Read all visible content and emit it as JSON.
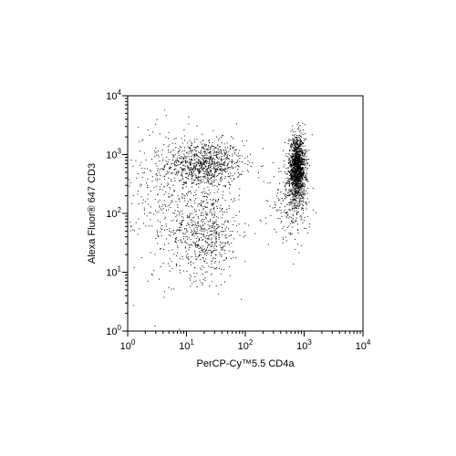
{
  "chart_data": {
    "type": "scatter",
    "scale": "log-log",
    "xlabel": "PerCP-Cy™5.5 CD4a",
    "ylabel": "Alexa Fluor® 647 CD3",
    "xlim": [
      1,
      10000
    ],
    "ylim": [
      1,
      10000
    ],
    "x_ticks": [
      {
        "base": "10",
        "exp": "0",
        "value": 1
      },
      {
        "base": "10",
        "exp": "1",
        "value": 10
      },
      {
        "base": "10",
        "exp": "2",
        "value": 100
      },
      {
        "base": "10",
        "exp": "3",
        "value": 1000
      },
      {
        "base": "10",
        "exp": "4",
        "value": 10000
      }
    ],
    "y_ticks": [
      {
        "base": "10",
        "exp": "0",
        "value": 1
      },
      {
        "base": "10",
        "exp": "1",
        "value": 10
      },
      {
        "base": "10",
        "exp": "2",
        "value": 100
      },
      {
        "base": "10",
        "exp": "3",
        "value": 1000
      },
      {
        "base": "10",
        "exp": "4",
        "value": 10000
      }
    ],
    "grid": false,
    "point_color": "#000000",
    "populations": [
      {
        "center": [
          20,
          700
        ],
        "spread": [
          0.33,
          0.2
        ],
        "count": 900
      },
      {
        "center": [
          20,
          50
        ],
        "spread": [
          0.3,
          0.4
        ],
        "count": 650
      },
      {
        "center": [
          750,
          600
        ],
        "spread": [
          0.07,
          0.26
        ],
        "count": 1500
      },
      {
        "center": [
          600,
          150
        ],
        "spread": [
          0.16,
          0.3
        ],
        "count": 260
      },
      {
        "center": [
          4,
          200
        ],
        "spread": [
          0.4,
          0.7
        ],
        "count": 300
      }
    ]
  }
}
